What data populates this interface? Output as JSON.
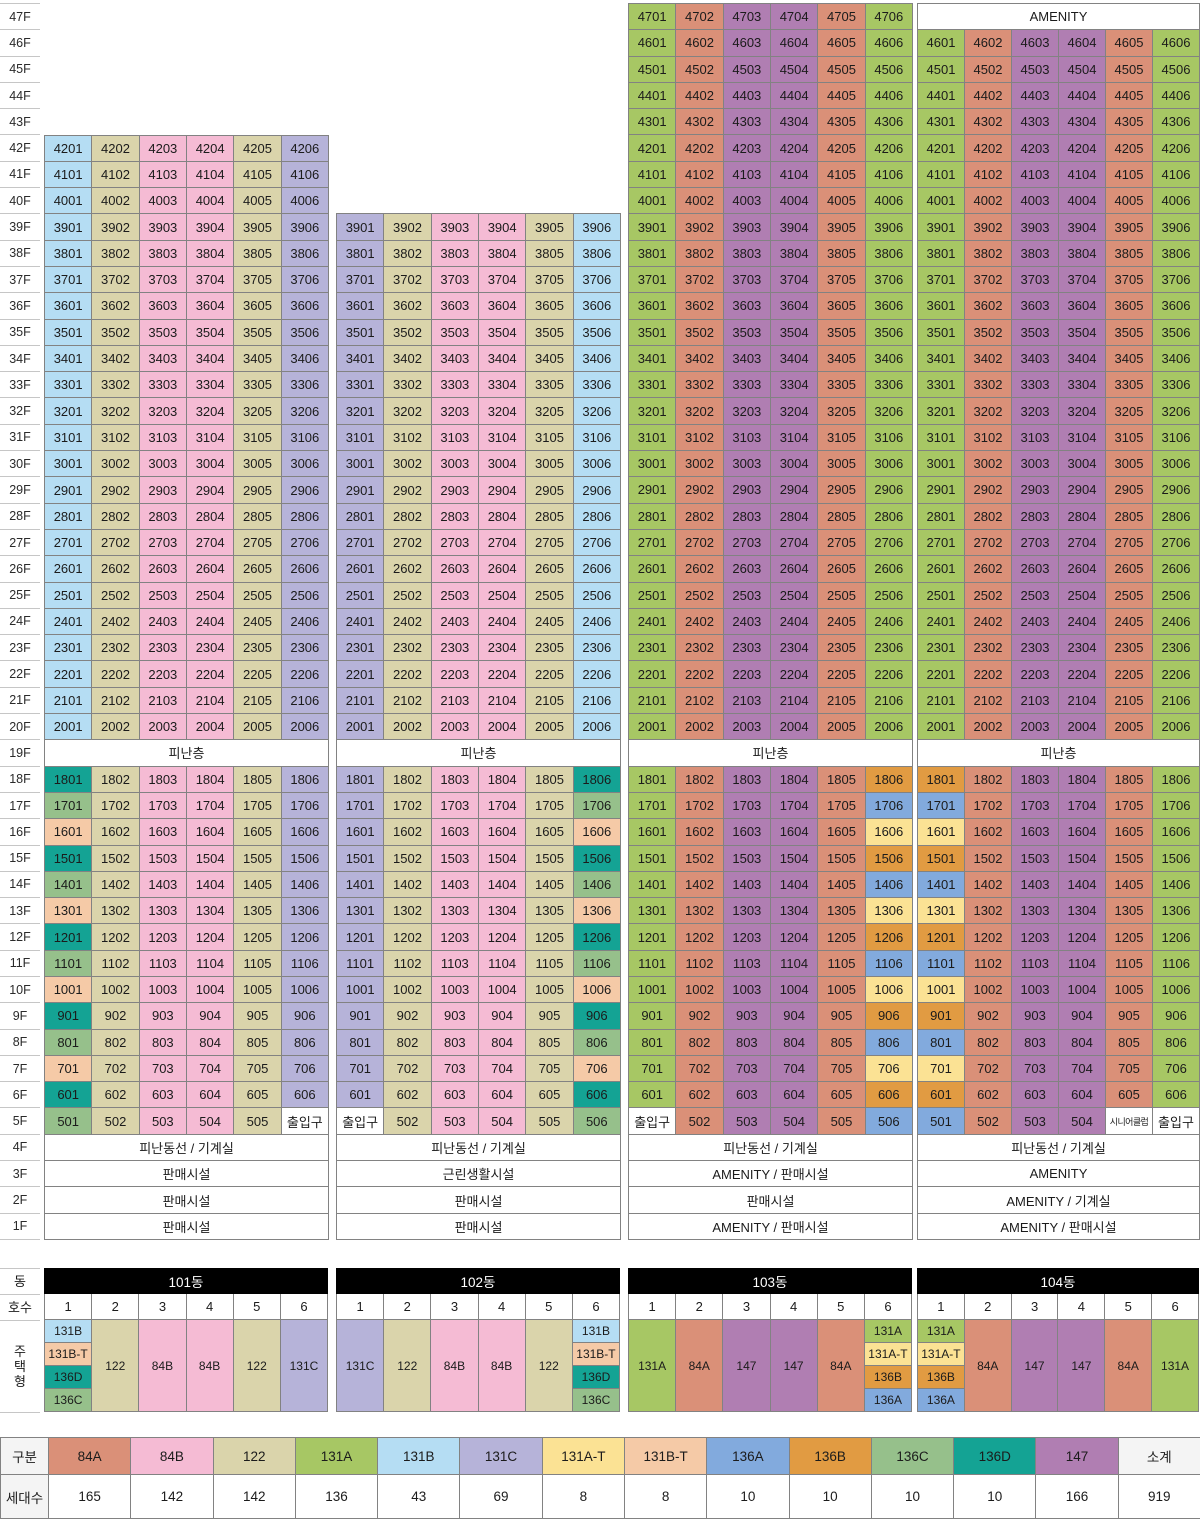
{
  "palette": {
    "84A": "#DA9078",
    "84B": "#F5BBD4",
    "122": "#DAD4AB",
    "131A": "#A7C764",
    "131B": "#B5DDF3",
    "131C": "#B6B3D9",
    "131A-T": "#FBE294",
    "131B-T": "#F5CAA7",
    "136A": "#82AADD",
    "136B": "#E19B42",
    "136C": "#96C08B",
    "136D": "#14A394",
    "147": "#B07EB2"
  },
  "labels": {
    "refuge_floor": "피난층",
    "entrance": "출입구",
    "senior_club": "시니어클럽",
    "amenity": "AMENITY"
  },
  "stack_chart": {
    "floor_labels": [
      "47F",
      "46F",
      "45F",
      "44F",
      "43F",
      "42F",
      "41F",
      "40F",
      "39F",
      "38F",
      "37F",
      "36F",
      "35F",
      "34F",
      "33F",
      "32F",
      "31F",
      "30F",
      "29F",
      "28F",
      "27F",
      "26F",
      "25F",
      "24F",
      "23F",
      "22F",
      "21F",
      "20F",
      "19F",
      "18F",
      "17F",
      "16F",
      "15F",
      "14F",
      "13F",
      "12F",
      "11F",
      "10F",
      "9F",
      "8F",
      "7F",
      "6F",
      "5F",
      "4F",
      "3F",
      "2F",
      "1F"
    ],
    "refuge_floor_number": 19,
    "towers": [
      {
        "name": "101동",
        "top_floor": 42,
        "amenity_floor": null,
        "columns": [
          "131B",
          "122",
          "84B",
          "84B",
          "122",
          "131C"
        ],
        "overrides": {
          "1": {
            "18": "136D",
            "17": "136C",
            "16": "131B-T",
            "15": "136D",
            "14": "136C",
            "13": "131B-T",
            "12": "136D",
            "11": "136C",
            "10": "131B-T",
            "9": "136D",
            "8": "136C",
            "7": "131B-T",
            "6": "136D",
            "5": "136C"
          }
        },
        "special_cells": {
          "5,6": "출입구"
        },
        "service_floors": [
          {
            "floor": "4F",
            "label": "피난동선 / 기계실"
          },
          {
            "floor": "3F",
            "label": "판매시설"
          },
          {
            "floor": "2F",
            "label": "판매시설"
          },
          {
            "floor": "1F",
            "label": "판매시설"
          }
        ]
      },
      {
        "name": "102동",
        "top_floor": 39,
        "amenity_floor": null,
        "columns": [
          "131C",
          "122",
          "84B",
          "84B",
          "122",
          "131B"
        ],
        "overrides": {
          "6": {
            "18": "136D",
            "17": "136C",
            "16": "131B-T",
            "15": "136D",
            "14": "136C",
            "13": "131B-T",
            "12": "136D",
            "11": "136C",
            "10": "131B-T",
            "9": "136D",
            "8": "136C",
            "7": "131B-T",
            "6": "136D",
            "5": "136C"
          }
        },
        "special_cells": {
          "5,1": "출입구"
        },
        "service_floors": [
          {
            "floor": "4F",
            "label": "피난동선 / 기계실"
          },
          {
            "floor": "3F",
            "label": "근린생활시설"
          },
          {
            "floor": "2F",
            "label": "판매시설"
          },
          {
            "floor": "1F",
            "label": "판매시설"
          }
        ]
      },
      {
        "name": "103동",
        "top_floor": 47,
        "amenity_floor": null,
        "columns": [
          "131A",
          "84A",
          "147",
          "147",
          "84A",
          "131A"
        ],
        "overrides": {
          "6": {
            "18": "136B",
            "17": "136A",
            "16": "131A-T",
            "15": "136B",
            "14": "136A",
            "13": "131A-T",
            "12": "136B",
            "11": "136A",
            "10": "131A-T",
            "9": "136B",
            "8": "136A",
            "7": "131A-T",
            "6": "136B",
            "5": "136A"
          }
        },
        "special_cells": {
          "5,1": "출입구"
        },
        "service_floors": [
          {
            "floor": "4F",
            "label": "피난동선 / 기계실"
          },
          {
            "floor": "3F",
            "label": "AMENITY / 판매시설"
          },
          {
            "floor": "2F",
            "label": "판매시설"
          },
          {
            "floor": "1F",
            "label": "AMENITY / 판매시설"
          }
        ]
      },
      {
        "name": "104동",
        "top_floor": 46,
        "amenity_floor": 47,
        "columns": [
          "131A",
          "84A",
          "147",
          "147",
          "84A",
          "131A"
        ],
        "overrides": {
          "1": {
            "18": "136B",
            "17": "136A",
            "16": "131A-T",
            "15": "136B",
            "14": "136A",
            "13": "131A-T",
            "12": "136B",
            "11": "136A",
            "10": "131A-T",
            "9": "136B",
            "8": "136A",
            "7": "131A-T",
            "6": "136B",
            "5": "136A"
          }
        },
        "special_cells": {
          "5,5": "시니어클럽",
          "5,6": "출입구"
        },
        "service_floors": [
          {
            "floor": "4F",
            "label": "피난동선 / 기계실"
          },
          {
            "floor": "3F",
            "label": "AMENITY"
          },
          {
            "floor": "2F",
            "label": "AMENITY / 기계실"
          },
          {
            "floor": "1F",
            "label": "AMENITY / 판매시설"
          }
        ]
      }
    ]
  },
  "unit_table": {
    "corner_labels": {
      "building": "동",
      "unit_no": "호수",
      "unit_type": "주택형"
    },
    "unit_numbers": [
      "1",
      "2",
      "3",
      "4",
      "5",
      "6"
    ],
    "buildings": [
      {
        "name": "101동",
        "stacks": [
          [
            "131B",
            "131B-T",
            "136D",
            "136C"
          ],
          [
            "122"
          ],
          [
            "84B"
          ],
          [
            "84B"
          ],
          [
            "122"
          ],
          [
            "131C"
          ]
        ]
      },
      {
        "name": "102동",
        "stacks": [
          [
            "131C"
          ],
          [
            "122"
          ],
          [
            "84B"
          ],
          [
            "84B"
          ],
          [
            "122"
          ],
          [
            "131B",
            "131B-T",
            "136D",
            "136C"
          ]
        ]
      },
      {
        "name": "103동",
        "stacks": [
          [
            "131A"
          ],
          [
            "84A"
          ],
          [
            "147"
          ],
          [
            "147"
          ],
          [
            "84A"
          ],
          [
            "131A",
            "131A-T",
            "136B",
            "136A"
          ]
        ]
      },
      {
        "name": "104동",
        "stacks": [
          [
            "131A",
            "131A-T",
            "136B",
            "136A"
          ],
          [
            "84A"
          ],
          [
            "147"
          ],
          [
            "147"
          ],
          [
            "84A"
          ],
          [
            "131A"
          ]
        ]
      }
    ]
  },
  "legend": {
    "header_label": "구분",
    "count_label": "세대수",
    "types": [
      "84A",
      "84B",
      "122",
      "131A",
      "131B",
      "131C",
      "131A-T",
      "131B-T",
      "136A",
      "136B",
      "136C",
      "136D",
      "147"
    ],
    "counts": [
      165,
      142,
      142,
      136,
      43,
      69,
      8,
      8,
      10,
      10,
      10,
      10,
      166
    ],
    "total_label": "소계",
    "total": 919
  }
}
